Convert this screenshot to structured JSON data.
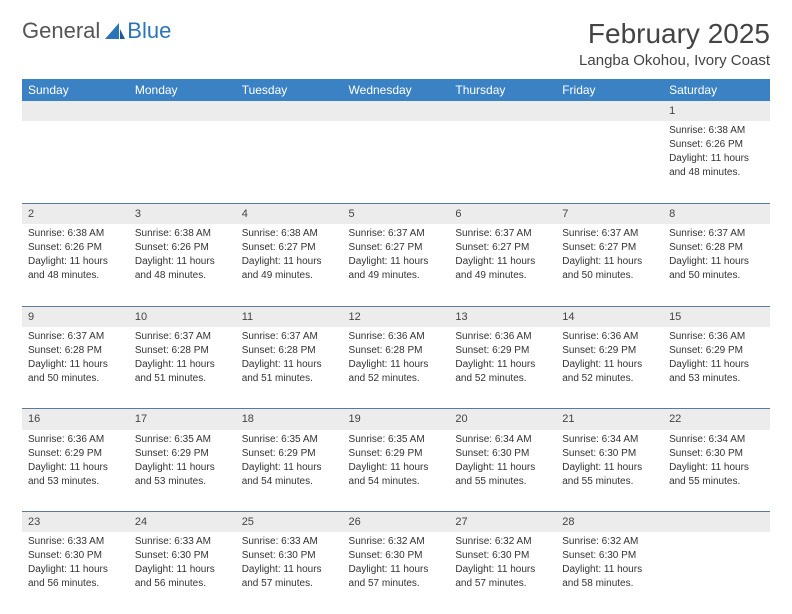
{
  "logo": {
    "text1": "General",
    "text2": "Blue"
  },
  "title": "February 2025",
  "location": "Langba Okohou, Ivory Coast",
  "colors": {
    "header_bg": "#3b82c4",
    "header_text": "#ffffff",
    "daynum_bg": "#ececec",
    "row_border": "#5a7a9a",
    "logo_blue": "#2b74b8",
    "text": "#333333"
  },
  "day_headers": [
    "Sunday",
    "Monday",
    "Tuesday",
    "Wednesday",
    "Thursday",
    "Friday",
    "Saturday"
  ],
  "weeks": [
    {
      "nums": [
        "",
        "",
        "",
        "",
        "",
        "",
        "1"
      ],
      "cells": [
        null,
        null,
        null,
        null,
        null,
        null,
        {
          "sunrise": "Sunrise: 6:38 AM",
          "sunset": "Sunset: 6:26 PM",
          "day1": "Daylight: 11 hours",
          "day2": "and 48 minutes."
        }
      ]
    },
    {
      "nums": [
        "2",
        "3",
        "4",
        "5",
        "6",
        "7",
        "8"
      ],
      "cells": [
        {
          "sunrise": "Sunrise: 6:38 AM",
          "sunset": "Sunset: 6:26 PM",
          "day1": "Daylight: 11 hours",
          "day2": "and 48 minutes."
        },
        {
          "sunrise": "Sunrise: 6:38 AM",
          "sunset": "Sunset: 6:26 PM",
          "day1": "Daylight: 11 hours",
          "day2": "and 48 minutes."
        },
        {
          "sunrise": "Sunrise: 6:38 AM",
          "sunset": "Sunset: 6:27 PM",
          "day1": "Daylight: 11 hours",
          "day2": "and 49 minutes."
        },
        {
          "sunrise": "Sunrise: 6:37 AM",
          "sunset": "Sunset: 6:27 PM",
          "day1": "Daylight: 11 hours",
          "day2": "and 49 minutes."
        },
        {
          "sunrise": "Sunrise: 6:37 AM",
          "sunset": "Sunset: 6:27 PM",
          "day1": "Daylight: 11 hours",
          "day2": "and 49 minutes."
        },
        {
          "sunrise": "Sunrise: 6:37 AM",
          "sunset": "Sunset: 6:27 PM",
          "day1": "Daylight: 11 hours",
          "day2": "and 50 minutes."
        },
        {
          "sunrise": "Sunrise: 6:37 AM",
          "sunset": "Sunset: 6:28 PM",
          "day1": "Daylight: 11 hours",
          "day2": "and 50 minutes."
        }
      ]
    },
    {
      "nums": [
        "9",
        "10",
        "11",
        "12",
        "13",
        "14",
        "15"
      ],
      "cells": [
        {
          "sunrise": "Sunrise: 6:37 AM",
          "sunset": "Sunset: 6:28 PM",
          "day1": "Daylight: 11 hours",
          "day2": "and 50 minutes."
        },
        {
          "sunrise": "Sunrise: 6:37 AM",
          "sunset": "Sunset: 6:28 PM",
          "day1": "Daylight: 11 hours",
          "day2": "and 51 minutes."
        },
        {
          "sunrise": "Sunrise: 6:37 AM",
          "sunset": "Sunset: 6:28 PM",
          "day1": "Daylight: 11 hours",
          "day2": "and 51 minutes."
        },
        {
          "sunrise": "Sunrise: 6:36 AM",
          "sunset": "Sunset: 6:28 PM",
          "day1": "Daylight: 11 hours",
          "day2": "and 52 minutes."
        },
        {
          "sunrise": "Sunrise: 6:36 AM",
          "sunset": "Sunset: 6:29 PM",
          "day1": "Daylight: 11 hours",
          "day2": "and 52 minutes."
        },
        {
          "sunrise": "Sunrise: 6:36 AM",
          "sunset": "Sunset: 6:29 PM",
          "day1": "Daylight: 11 hours",
          "day2": "and 52 minutes."
        },
        {
          "sunrise": "Sunrise: 6:36 AM",
          "sunset": "Sunset: 6:29 PM",
          "day1": "Daylight: 11 hours",
          "day2": "and 53 minutes."
        }
      ]
    },
    {
      "nums": [
        "16",
        "17",
        "18",
        "19",
        "20",
        "21",
        "22"
      ],
      "cells": [
        {
          "sunrise": "Sunrise: 6:36 AM",
          "sunset": "Sunset: 6:29 PM",
          "day1": "Daylight: 11 hours",
          "day2": "and 53 minutes."
        },
        {
          "sunrise": "Sunrise: 6:35 AM",
          "sunset": "Sunset: 6:29 PM",
          "day1": "Daylight: 11 hours",
          "day2": "and 53 minutes."
        },
        {
          "sunrise": "Sunrise: 6:35 AM",
          "sunset": "Sunset: 6:29 PM",
          "day1": "Daylight: 11 hours",
          "day2": "and 54 minutes."
        },
        {
          "sunrise": "Sunrise: 6:35 AM",
          "sunset": "Sunset: 6:29 PM",
          "day1": "Daylight: 11 hours",
          "day2": "and 54 minutes."
        },
        {
          "sunrise": "Sunrise: 6:34 AM",
          "sunset": "Sunset: 6:30 PM",
          "day1": "Daylight: 11 hours",
          "day2": "and 55 minutes."
        },
        {
          "sunrise": "Sunrise: 6:34 AM",
          "sunset": "Sunset: 6:30 PM",
          "day1": "Daylight: 11 hours",
          "day2": "and 55 minutes."
        },
        {
          "sunrise": "Sunrise: 6:34 AM",
          "sunset": "Sunset: 6:30 PM",
          "day1": "Daylight: 11 hours",
          "day2": "and 55 minutes."
        }
      ]
    },
    {
      "nums": [
        "23",
        "24",
        "25",
        "26",
        "27",
        "28",
        ""
      ],
      "cells": [
        {
          "sunrise": "Sunrise: 6:33 AM",
          "sunset": "Sunset: 6:30 PM",
          "day1": "Daylight: 11 hours",
          "day2": "and 56 minutes."
        },
        {
          "sunrise": "Sunrise: 6:33 AM",
          "sunset": "Sunset: 6:30 PM",
          "day1": "Daylight: 11 hours",
          "day2": "and 56 minutes."
        },
        {
          "sunrise": "Sunrise: 6:33 AM",
          "sunset": "Sunset: 6:30 PM",
          "day1": "Daylight: 11 hours",
          "day2": "and 57 minutes."
        },
        {
          "sunrise": "Sunrise: 6:32 AM",
          "sunset": "Sunset: 6:30 PM",
          "day1": "Daylight: 11 hours",
          "day2": "and 57 minutes."
        },
        {
          "sunrise": "Sunrise: 6:32 AM",
          "sunset": "Sunset: 6:30 PM",
          "day1": "Daylight: 11 hours",
          "day2": "and 57 minutes."
        },
        {
          "sunrise": "Sunrise: 6:32 AM",
          "sunset": "Sunset: 6:30 PM",
          "day1": "Daylight: 11 hours",
          "day2": "and 58 minutes."
        },
        null
      ]
    }
  ]
}
